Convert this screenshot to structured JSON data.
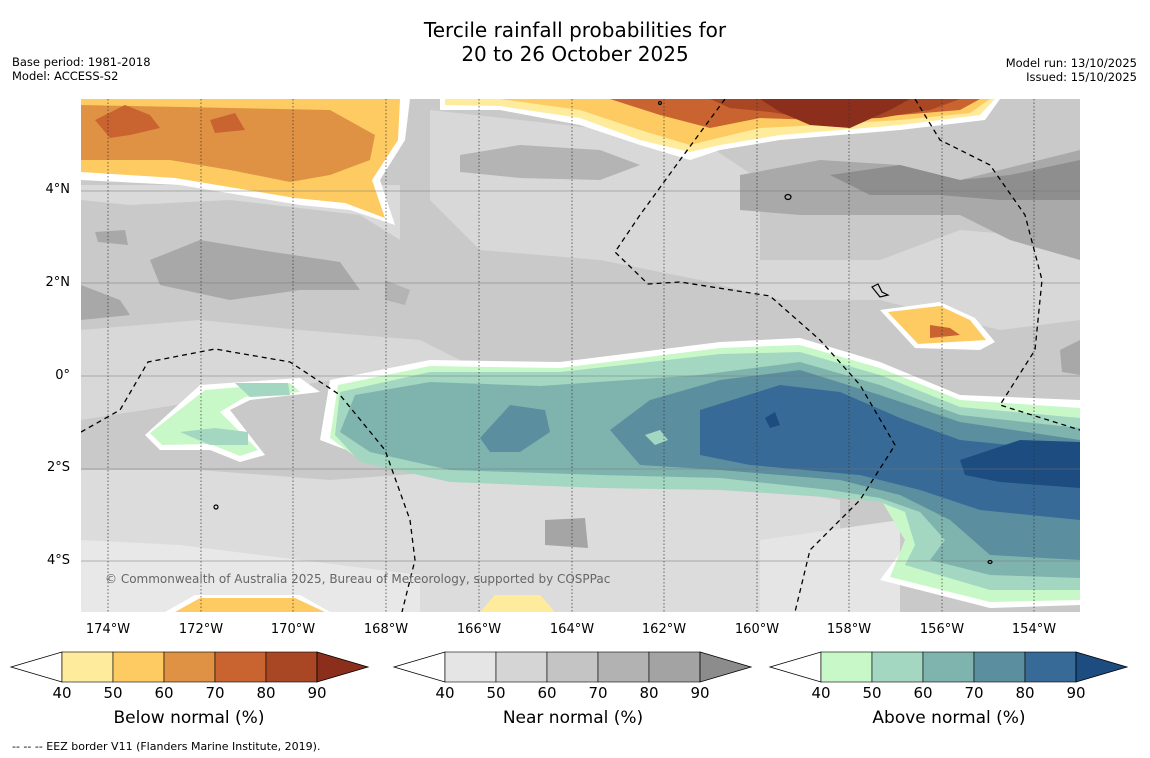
{
  "title": {
    "line1": "Tercile rainfall probabilities for",
    "line2": "20 to 26 October 2025"
  },
  "meta": {
    "base_period": "Base period: 1981-2018",
    "model": "Model: ACCESS-S2",
    "model_run": "Model run: 13/10/2025",
    "issued": "Issued: 15/10/2025"
  },
  "axes": {
    "lat_labels": [
      "4°N",
      "2°N",
      "0°",
      "2°S",
      "4°S"
    ],
    "lon_labels": [
      "174°W",
      "172°W",
      "170°W",
      "168°W",
      "166°W",
      "164°W",
      "162°W",
      "160°W",
      "158°W",
      "156°W",
      "154°W"
    ]
  },
  "credit": "© Commonwealth of Australia 2025, Bureau of Meteorology, supported by COSPPac",
  "legends": [
    {
      "label": "Below normal (%)",
      "ticks": [
        "40",
        "50",
        "60",
        "70",
        "80",
        "90"
      ],
      "colors": [
        "#ffffff",
        "#ffeb9c",
        "#fdcb61",
        "#df9244",
        "#c96431",
        "#a94725",
        "#8b2e1c"
      ]
    },
    {
      "label": "Near normal (%)",
      "ticks": [
        "40",
        "50",
        "60",
        "70",
        "80",
        "90"
      ],
      "colors": [
        "#ffffff",
        "#e5e5e5",
        "#d5d5d5",
        "#c4c4c4",
        "#b2b2b2",
        "#a3a3a3",
        "#8c8c8c"
      ]
    },
    {
      "label": "Above normal (%)",
      "ticks": [
        "40",
        "50",
        "60",
        "70",
        "80",
        "90"
      ],
      "colors": [
        "#ffffff",
        "#c8f8c8",
        "#a3d7c1",
        "#7fb4ae",
        "#5b8fa0",
        "#376a97",
        "#1c4c80"
      ]
    }
  ],
  "footer": "-- -- -- EEZ border V11 (Flanders Marine Institute, 2019)."
}
